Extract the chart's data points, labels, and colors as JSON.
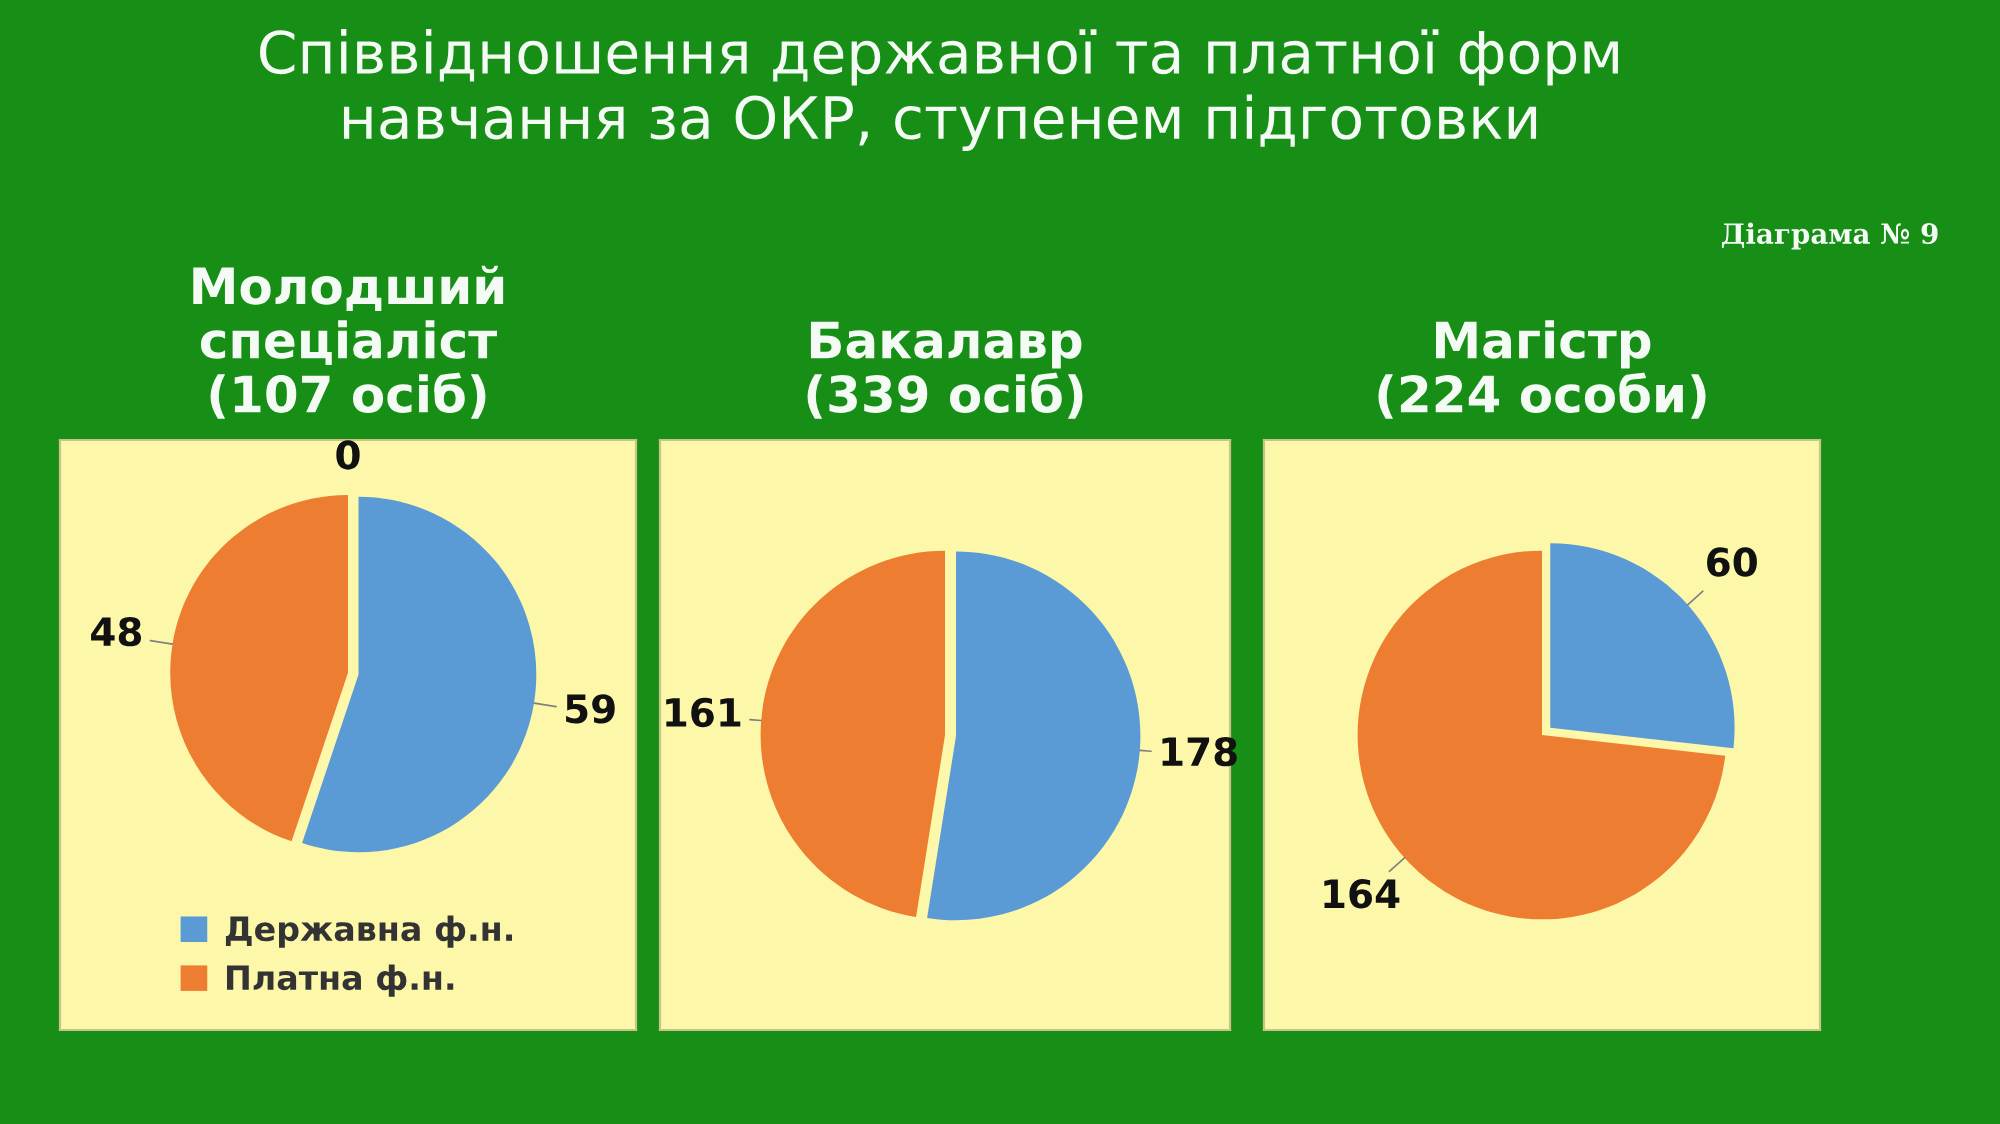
{
  "chart_data": [
    {
      "type": "other",
      "title": "Співвідношення державної та платної форм\nнавчання за ОКР, ступенем підготовки",
      "annotations": [
        "Діаграма № 9"
      ]
    },
    {
      "type": "pie",
      "title": "Молодший\nспеціаліст\n(107 осіб)",
      "categories": [
        "Державна ф.н.",
        "Платна ф.н."
      ],
      "values": [
        59,
        48
      ],
      "colors": [
        "#5b9bd5",
        "#ed7d31"
      ],
      "data_labels": true,
      "legend": "bottom",
      "annotations": [
        "0"
      ]
    },
    {
      "type": "pie",
      "title": "Бакалавр\n(339 осіб)",
      "categories": [
        null,
        null
      ],
      "values": [
        178,
        161
      ],
      "colors": [
        "#5b9bd5",
        "#ed7d31"
      ],
      "data_labels": true
    },
    {
      "type": "pie",
      "title": "Магістр\n(224 особи)",
      "categories": [
        null,
        null
      ],
      "values": [
        60,
        164
      ],
      "colors": [
        "#5b9bd5",
        "#ed7d31"
      ],
      "data_labels": true
    }
  ]
}
